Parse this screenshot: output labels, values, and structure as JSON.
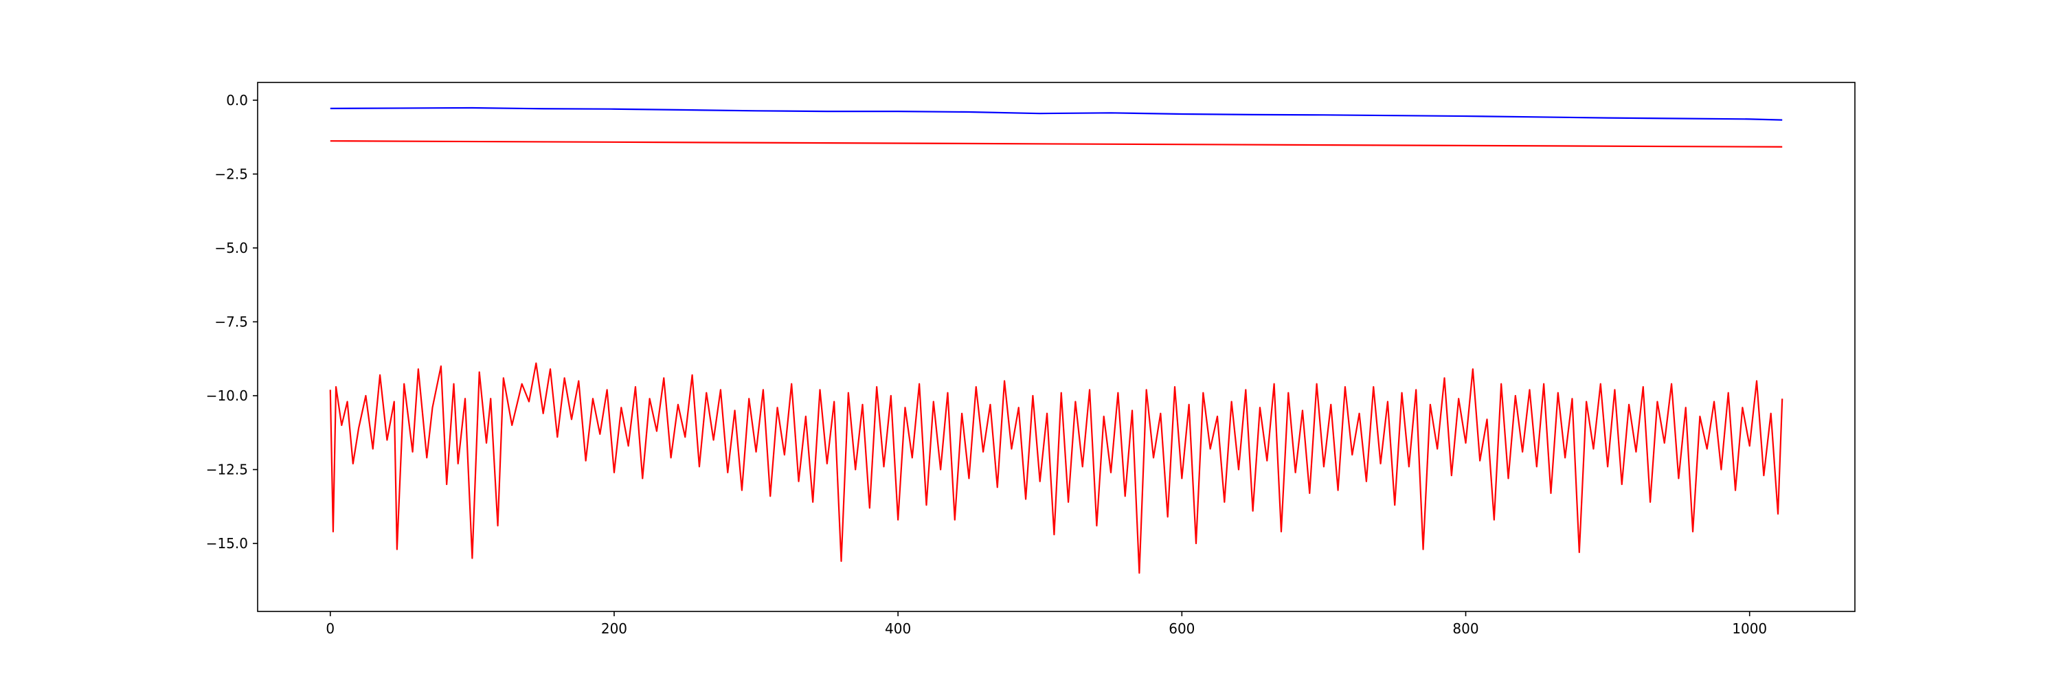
{
  "chart_data": {
    "type": "line",
    "title": "",
    "xlabel": "",
    "ylabel": "",
    "xlim": [
      -51.2,
      1074.2
    ],
    "ylim": [
      -17.3,
      0.6
    ],
    "grid": false,
    "legend": "none",
    "x_ticks": [
      0,
      200,
      400,
      600,
      800,
      1000
    ],
    "x_tick_labels": [
      "0",
      "200",
      "400",
      "600",
      "800",
      "1000"
    ],
    "y_ticks": [
      0.0,
      -2.5,
      -5.0,
      -7.5,
      -10.0,
      -12.5,
      -15.0
    ],
    "y_tick_labels": [
      "0.0",
      "−2.5",
      "−5.0",
      "−7.5",
      "−10.0",
      "−12.5",
      "−15.0"
    ],
    "series": [
      {
        "color": "#0000ff",
        "style": "noisy slow decline",
        "x": [
          0,
          50,
          100,
          150,
          200,
          250,
          300,
          350,
          400,
          450,
          500,
          550,
          600,
          650,
          700,
          750,
          800,
          850,
          900,
          950,
          1000,
          1023
        ],
        "values": [
          -0.28,
          -0.27,
          -0.26,
          -0.29,
          -0.3,
          -0.33,
          -0.36,
          -0.38,
          -0.38,
          -0.4,
          -0.45,
          -0.43,
          -0.47,
          -0.49,
          -0.5,
          -0.52,
          -0.54,
          -0.57,
          -0.6,
          -0.62,
          -0.64,
          -0.67
        ]
      },
      {
        "color": "#ff0000",
        "style": "straight line",
        "x": [
          0,
          1023
        ],
        "values": [
          -1.38,
          -1.58
        ]
      },
      {
        "color": "#ff0000",
        "style": "high-variance noise",
        "x": [
          0,
          2,
          4,
          8,
          12,
          16,
          20,
          25,
          30,
          35,
          40,
          45,
          47,
          52,
          58,
          62,
          68,
          72,
          78,
          82,
          87,
          90,
          95,
          100,
          105,
          110,
          113,
          118,
          122,
          128,
          135,
          140,
          145,
          150,
          155,
          160,
          165,
          170,
          175,
          180,
          185,
          190,
          195,
          200,
          205,
          210,
          215,
          220,
          225,
          230,
          235,
          240,
          245,
          250,
          255,
          260,
          265,
          270,
          275,
          280,
          285,
          290,
          295,
          300,
          305,
          310,
          315,
          320,
          325,
          330,
          335,
          340,
          345,
          350,
          355,
          360,
          365,
          370,
          375,
          380,
          385,
          390,
          395,
          400,
          405,
          410,
          415,
          420,
          425,
          430,
          435,
          440,
          445,
          450,
          455,
          460,
          465,
          470,
          475,
          480,
          485,
          490,
          495,
          500,
          505,
          510,
          515,
          520,
          525,
          530,
          535,
          540,
          545,
          550,
          555,
          560,
          565,
          570,
          575,
          580,
          585,
          590,
          595,
          600,
          605,
          610,
          615,
          620,
          625,
          630,
          635,
          640,
          645,
          650,
          655,
          660,
          665,
          670,
          675,
          680,
          685,
          690,
          695,
          700,
          705,
          710,
          715,
          720,
          725,
          730,
          735,
          740,
          745,
          750,
          755,
          760,
          765,
          770,
          775,
          780,
          785,
          790,
          795,
          800,
          805,
          810,
          815,
          820,
          825,
          830,
          835,
          840,
          845,
          850,
          855,
          860,
          865,
          870,
          875,
          880,
          885,
          890,
          895,
          900,
          905,
          910,
          915,
          920,
          925,
          930,
          935,
          940,
          945,
          950,
          955,
          960,
          965,
          970,
          975,
          980,
          985,
          990,
          995,
          1000,
          1005,
          1010,
          1015,
          1020,
          1023
        ],
        "values": [
          -9.8,
          -14.6,
          -9.7,
          -11.0,
          -10.2,
          -12.3,
          -11.1,
          -10.0,
          -11.8,
          -9.3,
          -11.5,
          -10.2,
          -15.2,
          -9.6,
          -11.9,
          -9.1,
          -12.1,
          -10.4,
          -9.0,
          -13.0,
          -9.6,
          -12.3,
          -10.1,
          -15.5,
          -9.2,
          -11.6,
          -10.1,
          -14.4,
          -9.4,
          -11.0,
          -9.6,
          -10.2,
          -8.9,
          -10.6,
          -9.1,
          -11.4,
          -9.4,
          -10.8,
          -9.5,
          -12.2,
          -10.1,
          -11.3,
          -9.8,
          -12.6,
          -10.4,
          -11.7,
          -9.7,
          -12.8,
          -10.1,
          -11.2,
          -9.4,
          -12.1,
          -10.3,
          -11.4,
          -9.3,
          -12.4,
          -9.9,
          -11.5,
          -9.8,
          -12.6,
          -10.5,
          -13.2,
          -10.1,
          -11.9,
          -9.8,
          -13.4,
          -10.4,
          -12.0,
          -9.6,
          -12.9,
          -10.7,
          -13.6,
          -9.8,
          -12.3,
          -10.2,
          -15.6,
          -9.9,
          -12.5,
          -10.3,
          -13.8,
          -9.7,
          -12.4,
          -10.0,
          -14.2,
          -10.4,
          -12.1,
          -9.6,
          -13.7,
          -10.2,
          -12.5,
          -9.9,
          -14.2,
          -10.6,
          -12.8,
          -9.7,
          -11.9,
          -10.3,
          -13.1,
          -9.5,
          -11.8,
          -10.4,
          -13.5,
          -10.0,
          -12.9,
          -10.6,
          -14.7,
          -9.9,
          -13.6,
          -10.2,
          -12.4,
          -9.8,
          -14.4,
          -10.7,
          -12.6,
          -9.9,
          -13.4,
          -10.5,
          -16.0,
          -9.8,
          -12.1,
          -10.6,
          -14.1,
          -9.7,
          -12.8,
          -10.3,
          -15.0,
          -9.9,
          -11.8,
          -10.7,
          -13.6,
          -10.2,
          -12.5,
          -9.8,
          -13.9,
          -10.4,
          -12.2,
          -9.6,
          -14.6,
          -9.9,
          -12.6,
          -10.5,
          -13.3,
          -9.6,
          -12.4,
          -10.3,
          -13.2,
          -9.7,
          -12.0,
          -10.6,
          -12.9,
          -9.7,
          -12.3,
          -10.2,
          -13.7,
          -9.9,
          -12.4,
          -9.8,
          -15.2,
          -10.3,
          -11.8,
          -9.4,
          -12.7,
          -10.1,
          -11.6,
          -9.1,
          -12.2,
          -10.8,
          -14.2,
          -9.6,
          -12.8,
          -10.0,
          -11.9,
          -9.8,
          -12.4,
          -9.6,
          -13.3,
          -9.9,
          -12.1,
          -10.1,
          -15.3,
          -10.2,
          -11.8,
          -9.6,
          -12.4,
          -9.8,
          -13.0,
          -10.3,
          -11.9,
          -9.7,
          -13.6,
          -10.2,
          -11.6,
          -9.6,
          -12.8,
          -10.4,
          -14.6,
          -10.7,
          -11.8,
          -10.2,
          -12.5,
          -9.9,
          -13.2,
          -10.4,
          -11.7,
          -9.5,
          -12.7,
          -10.6,
          -14.0,
          -10.1
        ]
      }
    ]
  }
}
